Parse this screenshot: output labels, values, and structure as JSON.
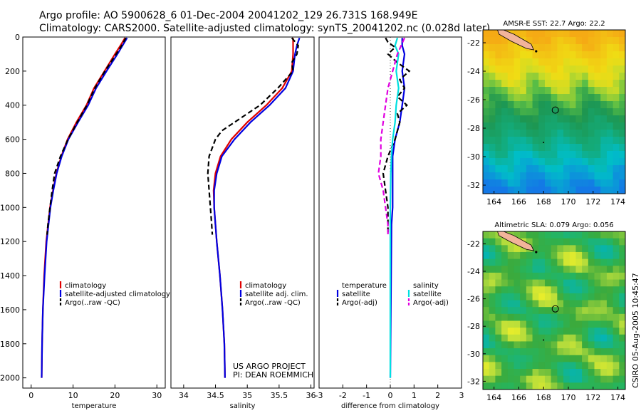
{
  "header": {
    "line1": "Argo profile: AO 5900628_6 01-Dec-2004 20041202_129 26.731S 168.949E",
    "line2": "Climatology: CARS2000. Satellite-adjusted climatology: synTS_20041202.nc (0.028d later)"
  },
  "credit": {
    "line1": "US ARGO PROJECT",
    "line2": "PI: DEAN ROEMMICH"
  },
  "timestamp": "CSIRO 05-Aug-2005 10:45:47",
  "colors": {
    "climatology": "#e00000",
    "satellite": "#0000e0",
    "argo": "#000000",
    "sat_sal": "#00e0e0",
    "argo_sal": "#e000e0"
  },
  "chart_data": [
    {
      "id": "temperature",
      "type": "line",
      "xlabel": "temperature",
      "xlim": [
        -2,
        32
      ],
      "ylim": [
        2060,
        0
      ],
      "xticks": [
        0,
        10,
        20,
        30
      ],
      "yticks": [
        0,
        200,
        400,
        600,
        800,
        1000,
        1200,
        1400,
        1600,
        1800,
        2000
      ],
      "legend": [
        "climatology",
        "satellite-adjusted climatology",
        "Argo(..raw -QC)"
      ],
      "series": [
        {
          "name": "climatology",
          "color": "#e00000",
          "dash": "",
          "z": [
            5,
            50,
            100,
            200,
            300,
            400,
            500,
            600,
            700,
            800,
            900,
            1000,
            1200,
            1400,
            1600,
            1800,
            2000
          ],
          "v": [
            22.4,
            21.3,
            20.0,
            17.5,
            15.0,
            13.2,
            10.8,
            8.7,
            7.2,
            6.0,
            5.2,
            4.5,
            3.6,
            3.1,
            2.8,
            2.6,
            2.5
          ]
        },
        {
          "name": "satellite-adjusted climatology",
          "color": "#0000e0",
          "dash": "",
          "z": [
            5,
            50,
            100,
            200,
            300,
            400,
            500,
            600,
            700,
            800,
            900,
            1000,
            1200,
            1400,
            1600,
            1800,
            2000
          ],
          "v": [
            22.9,
            21.8,
            20.6,
            18.0,
            15.5,
            13.6,
            11.2,
            8.9,
            7.3,
            6.1,
            5.3,
            4.6,
            3.7,
            3.2,
            2.8,
            2.6,
            2.5
          ]
        },
        {
          "name": "Argo(..raw -QC)",
          "color": "#000000",
          "dash": "7,4",
          "z": [
            5,
            50,
            100,
            200,
            300,
            400,
            500,
            600,
            700,
            800,
            900,
            1000,
            1100,
            1160
          ],
          "v": [
            22.6,
            21.6,
            20.3,
            17.6,
            15.2,
            13.3,
            11.0,
            8.8,
            7.0,
            5.6,
            5.0,
            4.5,
            4.0,
            3.8
          ]
        }
      ]
    },
    {
      "id": "salinity",
      "type": "line",
      "xlabel": "salinity",
      "xlim": [
        33.8,
        36.05
      ],
      "ylim": [
        2060,
        0
      ],
      "xticks": [
        34,
        34.5,
        35,
        35.5,
        36
      ],
      "legend": [
        "climatology",
        "satellite adj. clim.",
        "Argo(..raw -QC)"
      ],
      "series": [
        {
          "name": "climatology",
          "color": "#e00000",
          "dash": "",
          "z": [
            5,
            50,
            100,
            200,
            300,
            400,
            500,
            600,
            700,
            800,
            900,
            1000,
            1200,
            1400,
            1600,
            1800,
            2000
          ],
          "v": [
            35.72,
            35.72,
            35.72,
            35.7,
            35.55,
            35.3,
            35.0,
            34.75,
            34.58,
            34.5,
            34.47,
            34.48,
            34.52,
            34.57,
            34.61,
            34.64,
            34.65
          ]
        },
        {
          "name": "satellite adj. clim.",
          "color": "#0000e0",
          "dash": "",
          "z": [
            5,
            50,
            100,
            200,
            300,
            400,
            500,
            600,
            700,
            800,
            900,
            1000,
            1200,
            1400,
            1600,
            1800,
            2000
          ],
          "v": [
            35.82,
            35.78,
            35.75,
            35.72,
            35.6,
            35.35,
            35.05,
            34.8,
            34.6,
            34.52,
            34.48,
            34.48,
            34.52,
            34.57,
            34.61,
            34.64,
            34.65
          ]
        },
        {
          "name": "Argo(..raw -QC)",
          "color": "#000000",
          "dash": "7,4",
          "z": [
            5,
            50,
            100,
            150,
            200,
            300,
            400,
            500,
            550,
            600,
            700,
            800,
            900,
            1000,
            1100,
            1160
          ],
          "v": [
            35.7,
            35.8,
            35.78,
            35.7,
            35.72,
            35.48,
            35.2,
            34.8,
            34.6,
            34.5,
            34.4,
            34.38,
            34.4,
            34.42,
            34.44,
            34.45
          ]
        }
      ]
    },
    {
      "id": "difference",
      "type": "line",
      "xlabel": "difference from climatology",
      "xlim": [
        -3,
        3
      ],
      "ylim": [
        2060,
        0
      ],
      "xticks": [
        -3,
        -2,
        -1,
        0,
        1,
        2,
        3
      ],
      "legend_left": {
        "title": "temperature",
        "items": [
          "satellite",
          "Argo(-adj)"
        ]
      },
      "legend_right": {
        "title": "salinity",
        "items": [
          "satellite",
          "Argo(-adj)"
        ]
      },
      "series": [
        {
          "name": "temperature satellite",
          "color": "#0000e0",
          "dash": "",
          "z": [
            5,
            50,
            100,
            200,
            300,
            400,
            500,
            600,
            700,
            800,
            900,
            1000,
            1100,
            2000
          ],
          "v": [
            0.5,
            0.5,
            0.6,
            0.5,
            0.6,
            0.5,
            0.4,
            0.2,
            0.1,
            0.1,
            0.1,
            0.1,
            0.05,
            0.0
          ]
        },
        {
          "name": "temperature Argo(-adj)",
          "color": "#000000",
          "dash": "7,4",
          "z": [
            5,
            30,
            60,
            100,
            150,
            200,
            250,
            300,
            350,
            400,
            450,
            500,
            600,
            700,
            800,
            900,
            1000,
            1100,
            1160
          ],
          "v": [
            -0.2,
            -0.1,
            0.2,
            -0.1,
            0.3,
            0.8,
            0.4,
            0.6,
            0.3,
            0.7,
            0.3,
            0.4,
            0.2,
            -0.1,
            -0.3,
            -0.2,
            -0.1,
            -0.1,
            -0.1
          ]
        },
        {
          "name": "salinity satellite",
          "color": "#00e0e0",
          "dash": "",
          "z": [
            5,
            50,
            100,
            200,
            300,
            400,
            500,
            600,
            700,
            800,
            1000,
            2000
          ],
          "v": [
            0.3,
            0.2,
            0.35,
            0.25,
            0.35,
            0.25,
            0.2,
            0.1,
            0.05,
            0.02,
            0.0,
            0.0
          ]
        },
        {
          "name": "salinity Argo(-adj)",
          "color": "#e000e0",
          "dash": "7,4",
          "z": [
            5,
            100,
            200,
            300,
            400,
            500,
            600,
            700,
            800,
            900,
            1000,
            1100,
            1160
          ],
          "v": [
            0.6,
            0.3,
            0.1,
            -0.1,
            -0.2,
            -0.3,
            -0.4,
            -0.4,
            -0.5,
            -0.3,
            -0.2,
            -0.1,
            -0.1
          ]
        }
      ]
    },
    {
      "id": "sst_map",
      "type": "heatmap",
      "title": "AMSR-E SST: 22.7 Argo: 22.2",
      "xlim": [
        163.1,
        174.6
      ],
      "ylim": [
        -32.6,
        -21.1
      ],
      "xticks": [
        164,
        166,
        168,
        170,
        172,
        174
      ],
      "yticks": [
        -22,
        -24,
        -26,
        -28,
        -30,
        -32
      ],
      "marker": {
        "lon": 168.95,
        "lat": -26.73
      }
    },
    {
      "id": "sla_map",
      "type": "heatmap",
      "title": "Altimetric SLA: 0.079 Argo: 0.056",
      "xlim": [
        163.1,
        174.6
      ],
      "ylim": [
        -32.6,
        -21.1
      ],
      "xticks": [
        164,
        166,
        168,
        170,
        172,
        174
      ],
      "yticks": [
        -22,
        -24,
        -26,
        -28,
        -30,
        -32
      ],
      "marker": {
        "lon": 168.95,
        "lat": -26.73
      }
    }
  ]
}
